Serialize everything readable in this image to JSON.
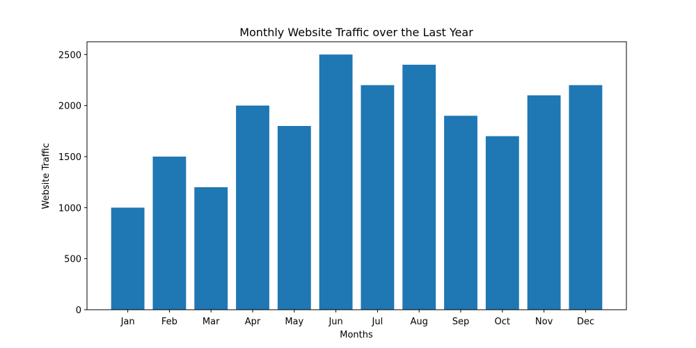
{
  "chart_data": {
    "type": "bar",
    "title": "Monthly Website Traffic over the Last Year",
    "xlabel": "Months",
    "ylabel": "Website Traffic",
    "categories": [
      "Jan",
      "Feb",
      "Mar",
      "Apr",
      "May",
      "Jun",
      "Jul",
      "Aug",
      "Sep",
      "Oct",
      "Nov",
      "Dec"
    ],
    "values": [
      1000,
      1500,
      1200,
      2000,
      1800,
      2500,
      2200,
      2400,
      1900,
      1700,
      2100,
      2200
    ],
    "ylim": [
      0,
      2625
    ],
    "yticks": [
      0,
      500,
      1000,
      1500,
      2000,
      2500
    ],
    "grid": false,
    "bar_color": "#1f77b4"
  }
}
